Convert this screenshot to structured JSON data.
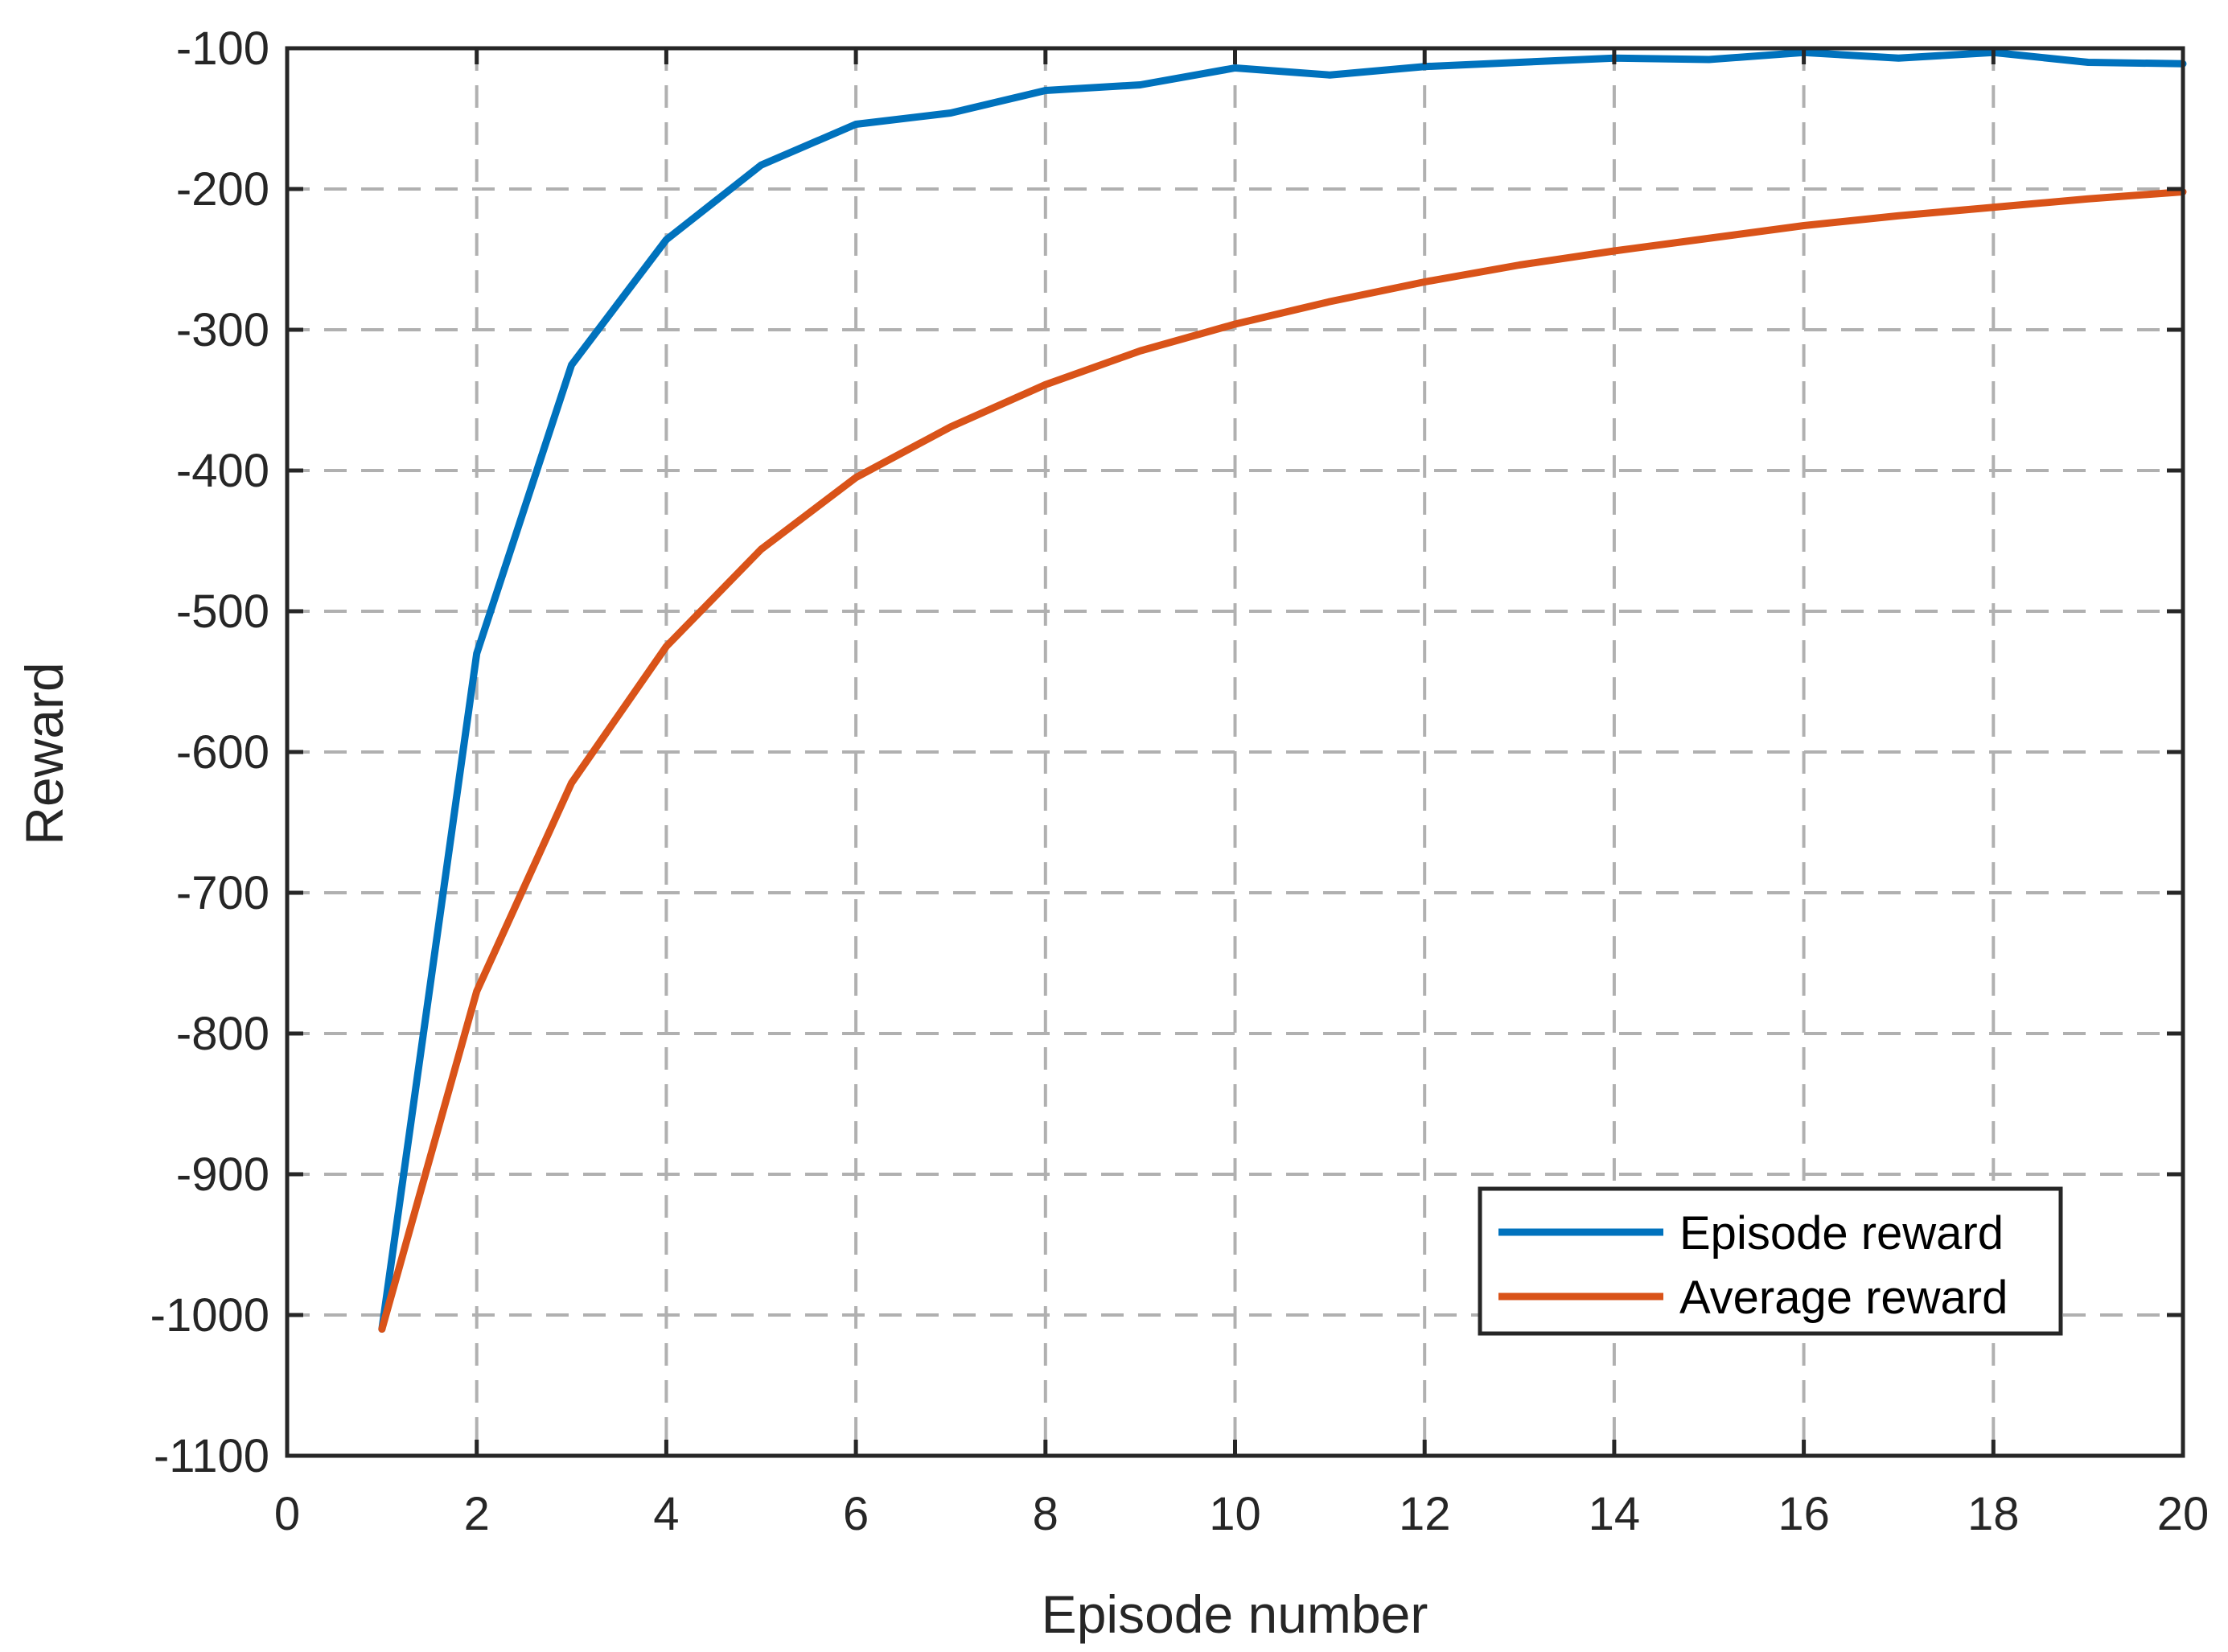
{
  "chart_data": {
    "type": "line",
    "title": "",
    "xlabel": "Episode number",
    "ylabel": "Reward",
    "xlim": [
      0,
      20
    ],
    "ylim": [
      -1100,
      -100
    ],
    "xticks": [
      0,
      2,
      4,
      6,
      8,
      10,
      12,
      14,
      16,
      18,
      20
    ],
    "yticks": [
      -100,
      -200,
      -300,
      -400,
      -500,
      -600,
      -700,
      -800,
      -900,
      -1000,
      -1100
    ],
    "grid": true,
    "grid_style": "dashed",
    "legend_position": "bottom-right",
    "x": [
      1,
      2,
      3,
      4,
      5,
      6,
      7,
      8,
      9,
      10,
      11,
      12,
      13,
      14,
      15,
      16,
      17,
      18,
      19,
      20
    ],
    "series": [
      {
        "name": "Episode reward",
        "color": "#0072BD",
        "values": [
          -1010,
          -530,
          -325,
          -236,
          -183,
          -154,
          -146,
          -130,
          -126,
          -114,
          -119,
          -113,
          -110,
          -107,
          -108,
          -103,
          -107,
          -103,
          -110,
          -111
        ]
      },
      {
        "name": "Average reward",
        "color": "#D95319",
        "values": [
          -1010,
          -770,
          -622,
          -525,
          -456,
          -405,
          -369,
          -339,
          -315,
          -296,
          -280,
          -266,
          -254,
          -244,
          -235,
          -226,
          -219,
          -213,
          -207,
          -202
        ]
      }
    ],
    "grid_color": "#b0b0b0",
    "axis_color": "#262626"
  }
}
